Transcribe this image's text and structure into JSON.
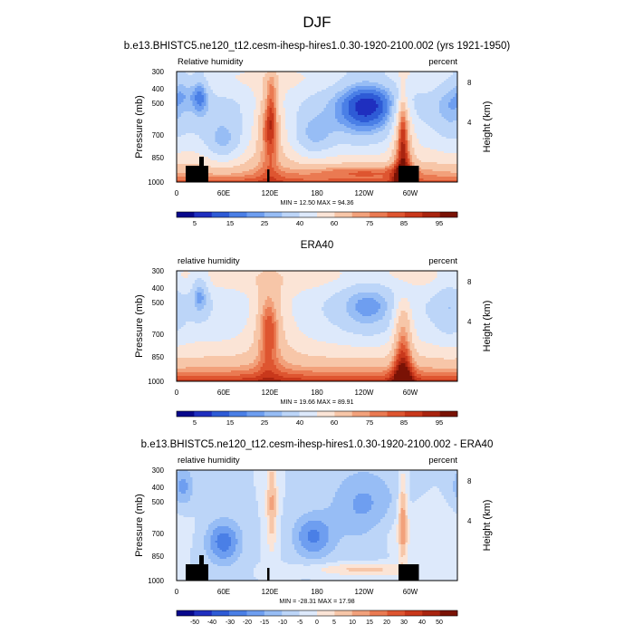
{
  "title": "DJF",
  "chart_data": [
    {
      "type": "heatmap",
      "title": "b.e13.BHISTC5.ne120_t12.cesm-ihesp-hires1.0.30-1920-2100.002 (yrs 1921-1950)",
      "left_label": "Relative humidity",
      "right_label": "percent",
      "ylabel": "Pressure (mb)",
      "y2label": "Height (km)",
      "x_ticks": [
        "0",
        "60E",
        "120E",
        "180",
        "120W",
        "60W"
      ],
      "x_range": [
        0,
        360
      ],
      "y_ticks": [
        "300",
        "400",
        "500",
        "700",
        "850",
        "1000"
      ],
      "y_range": [
        300,
        1000
      ],
      "y_log": true,
      "y2_ticks": [
        "8",
        "4"
      ],
      "stats": "MIN =  12.50   MAX =  94.36",
      "colorbar_labels": [
        "5",
        "15",
        "25",
        "40",
        "60",
        "75",
        "85",
        "95"
      ],
      "colorbar_colors": [
        "#08088c",
        "#1f2fbf",
        "#2e5bd6",
        "#4a7fe6",
        "#6e9ef0",
        "#97bdf5",
        "#bcd5f8",
        "#dde9fb",
        "#fbe4d6",
        "#f7c6a8",
        "#f2a17b",
        "#ea7a52",
        "#de5530",
        "#c9381b",
        "#a9240f",
        "#7a1205"
      ],
      "field": "rh",
      "mask": true
    },
    {
      "type": "heatmap",
      "title": "ERA40",
      "left_label": "relative humidity",
      "right_label": "percent",
      "ylabel": "Pressure (mb)",
      "y2label": "Height (km)",
      "x_ticks": [
        "0",
        "60E",
        "120E",
        "180",
        "120W",
        "60W"
      ],
      "x_range": [
        0,
        360
      ],
      "y_ticks": [
        "300",
        "400",
        "500",
        "700",
        "850",
        "1000"
      ],
      "y_range": [
        300,
        1000
      ],
      "y_log": true,
      "y2_ticks": [
        "8",
        "4"
      ],
      "stats": "MIN =  19.66   MAX =  89.91",
      "colorbar_labels": [
        "5",
        "15",
        "25",
        "40",
        "60",
        "75",
        "85",
        "95"
      ],
      "colorbar_colors": [
        "#08088c",
        "#1f2fbf",
        "#2e5bd6",
        "#4a7fe6",
        "#6e9ef0",
        "#97bdf5",
        "#bcd5f8",
        "#dde9fb",
        "#fbe4d6",
        "#f7c6a8",
        "#f2a17b",
        "#ea7a52",
        "#de5530",
        "#c9381b",
        "#a9240f",
        "#7a1205"
      ],
      "field": "era",
      "mask": false
    },
    {
      "type": "heatmap",
      "title": "b.e13.BHISTC5.ne120_t12.cesm-ihesp-hires1.0.30-1920-2100.002 - ERA40",
      "left_label": "relative humidity",
      "right_label": "percent",
      "ylabel": "Pressure (mb)",
      "y2label": "Height (km)",
      "x_ticks": [
        "0",
        "60E",
        "120E",
        "180",
        "120W",
        "60W"
      ],
      "x_range": [
        0,
        360
      ],
      "y_ticks": [
        "300",
        "400",
        "500",
        "700",
        "850",
        "1000"
      ],
      "y_range": [
        300,
        1000
      ],
      "y_log": true,
      "y2_ticks": [
        "8",
        "4"
      ],
      "stats": "MIN = -28.31   MAX =  17.98",
      "colorbar_labels": [
        "-50",
        "-40",
        "-30",
        "-20",
        "-15",
        "-10",
        "-5",
        "0",
        "5",
        "10",
        "15",
        "20",
        "30",
        "40",
        "50"
      ],
      "colorbar_colors": [
        "#08088c",
        "#1f2fbf",
        "#2e5bd6",
        "#4a7fe6",
        "#6e9ef0",
        "#97bdf5",
        "#bcd5f8",
        "#dde9fb",
        "#fbe4d6",
        "#f7c6a8",
        "#f2a17b",
        "#ea7a52",
        "#de5530",
        "#c9381b",
        "#a9240f",
        "#7a1205"
      ],
      "field": "diff",
      "mask": true
    }
  ]
}
